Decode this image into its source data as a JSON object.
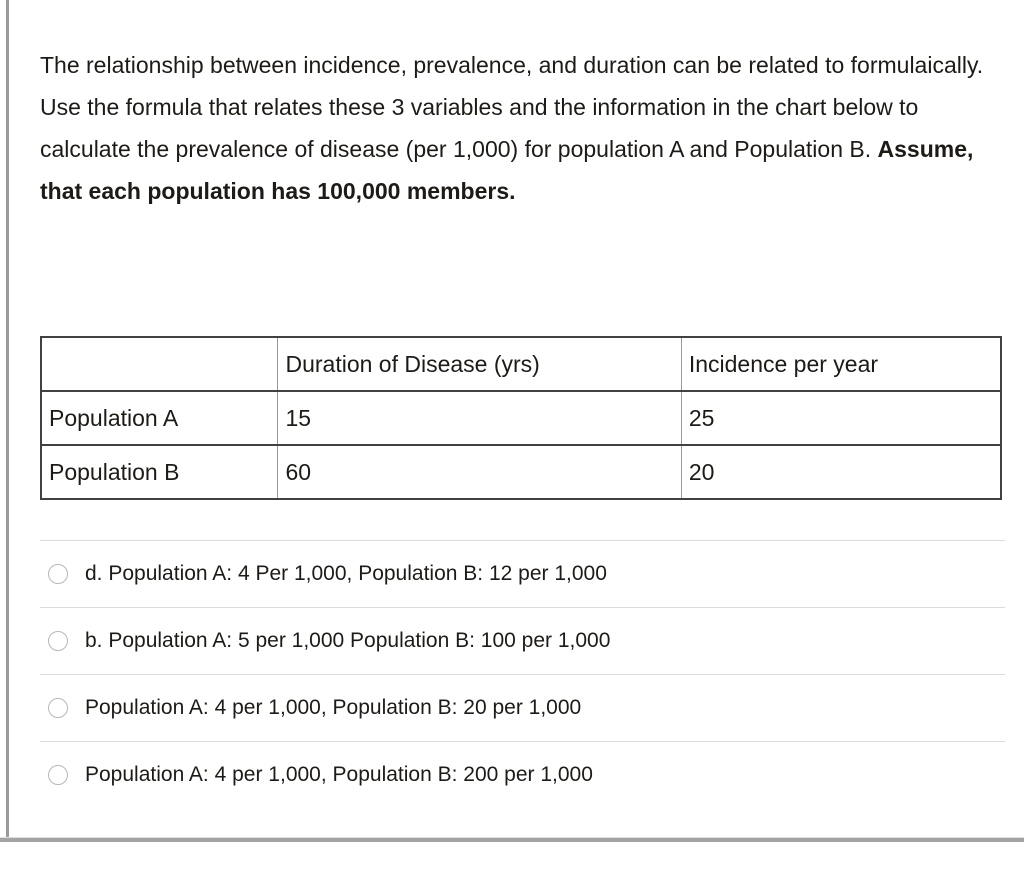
{
  "question": {
    "text_normal": "The relationship between incidence, prevalence, and duration can be related to formulaically. Use the formula that relates these 3 variables and the information in the chart below to calculate the prevalence of disease (per 1,000) for population A and Population B. ",
    "text_bold": "Assume, that each population has 100,000 members."
  },
  "table": {
    "headers": [
      "",
      "Duration of Disease (yrs)",
      "Incidence per year"
    ],
    "rows": [
      {
        "label": "Population A",
        "duration": "15",
        "incidence": "25"
      },
      {
        "label": "Population B",
        "duration": "60",
        "incidence": "20"
      }
    ]
  },
  "options": [
    {
      "label": "d. Population A: 4 Per 1,000, Population B: 12 per 1,000",
      "selected": false
    },
    {
      "label": "b. Population A: 5 per 1,000 Population B: 100 per 1,000",
      "selected": false
    },
    {
      "label": "Population A: 4 per 1,000, Population B: 20 per 1,000",
      "selected": false
    },
    {
      "label": "Population A: 4 per 1,000, Population B: 200 per 1,000",
      "selected": false
    }
  ],
  "colors": {
    "text": "#1e1b17",
    "table_rule_dark": "#414141",
    "table_rule_light": "#999999",
    "option_separator": "#dcdcdc",
    "radio_border": "#b7b7b7",
    "frame_gray": "#9a9a9a"
  }
}
